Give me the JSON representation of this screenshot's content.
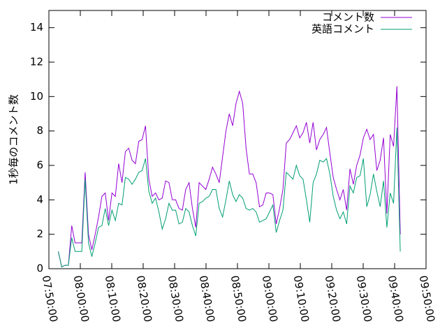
{
  "chart_data": {
    "type": "line",
    "ylabel": "1秒毎のコメント数",
    "x": [
      "07:53:00",
      "07:54:04",
      "07:55:08",
      "07:56:12",
      "07:57:16",
      "07:58:20",
      "07:59:24",
      "08:00:28",
      "08:01:32",
      "08:02:36",
      "08:03:40",
      "08:04:44",
      "08:05:48",
      "08:06:52",
      "08:07:56",
      "08:09:00",
      "08:10:04",
      "08:11:08",
      "08:12:12",
      "08:13:16",
      "08:14:20",
      "08:15:24",
      "08:16:28",
      "08:17:32",
      "08:18:36",
      "08:19:40",
      "08:20:44",
      "08:21:48",
      "08:22:52",
      "08:23:56",
      "08:25:00",
      "08:26:04",
      "08:27:08",
      "08:28:12",
      "08:29:16",
      "08:30:20",
      "08:31:24",
      "08:32:28",
      "08:33:32",
      "08:34:36",
      "08:35:40",
      "08:36:44",
      "08:37:48",
      "08:38:52",
      "08:39:56",
      "08:41:00",
      "08:42:04",
      "08:43:08",
      "08:44:12",
      "08:45:16",
      "08:46:20",
      "08:47:24",
      "08:48:28",
      "08:49:32",
      "08:50:36",
      "08:51:40",
      "08:52:44",
      "08:53:48",
      "08:54:52",
      "08:55:56",
      "08:57:00",
      "08:58:04",
      "08:59:08",
      "09:00:12",
      "09:01:16",
      "09:02:20",
      "09:03:24",
      "09:04:28",
      "09:05:32",
      "09:06:36",
      "09:07:40",
      "09:08:44",
      "09:09:48",
      "09:10:52",
      "09:11:56",
      "09:13:00",
      "09:14:04",
      "09:15:08",
      "09:16:12",
      "09:17:16",
      "09:18:20",
      "09:19:24",
      "09:20:28",
      "09:21:32",
      "09:22:36",
      "09:23:40",
      "09:24:44",
      "09:25:48",
      "09:26:52",
      "09:27:56",
      "09:29:00",
      "09:30:04",
      "09:31:08",
      "09:32:12",
      "09:33:16",
      "09:34:20",
      "09:35:24",
      "09:36:28",
      "09:37:32",
      "09:38:36",
      "09:39:40",
      "09:40:44",
      "09:41:48"
    ],
    "series": [
      {
        "name": "コメント数",
        "color": "#9400d3",
        "values": [
          1.0,
          0.1,
          0.2,
          0.2,
          2.5,
          1.5,
          1.5,
          1.5,
          5.6,
          2.0,
          1.1,
          2.0,
          3.0,
          4.2,
          4.4,
          2.8,
          4.4,
          4.2,
          6.1,
          5.0,
          6.8,
          7.0,
          6.3,
          6.1,
          7.4,
          7.5,
          8.3,
          5.2,
          4.2,
          4.4,
          4.0,
          4.1,
          5.1,
          5.0,
          4.0,
          4.0,
          3.5,
          3.4,
          4.6,
          5.0,
          3.5,
          2.4,
          5.0,
          4.8,
          4.6,
          5.2,
          5.9,
          5.5,
          5.0,
          6.5,
          8.0,
          9.0,
          8.3,
          9.6,
          10.3,
          9.6,
          7.0,
          5.5,
          5.5,
          5.0,
          3.6,
          3.7,
          4.4,
          4.4,
          4.3,
          2.6,
          3.5,
          4.6,
          7.3,
          7.5,
          7.9,
          8.3,
          7.6,
          7.9,
          8.5,
          7.3,
          8.5,
          6.9,
          7.5,
          7.8,
          8.2,
          6.7,
          5.3,
          4.6,
          4.0,
          4.6,
          3.4,
          5.8,
          4.9,
          6.0,
          6.6,
          7.6,
          8.1,
          7.5,
          7.8,
          5.7,
          6.3,
          7.6,
          3.2,
          7.8,
          7.1,
          10.6,
          2.0
        ]
      },
      {
        "name": "英語コメント",
        "color": "#009e73",
        "values": [
          1.0,
          0.1,
          0.2,
          0.2,
          1.8,
          1.0,
          1.0,
          1.0,
          5.2,
          1.5,
          0.7,
          1.5,
          2.4,
          2.5,
          3.5,
          2.5,
          3.4,
          2.8,
          3.8,
          3.7,
          5.3,
          5.2,
          4.9,
          5.2,
          5.6,
          5.7,
          6.4,
          4.5,
          3.8,
          4.1,
          3.3,
          2.3,
          2.9,
          3.8,
          3.4,
          3.4,
          2.6,
          2.7,
          3.5,
          3.3,
          2.5,
          1.9,
          3.8,
          3.9,
          4.1,
          4.2,
          4.6,
          4.6,
          3.5,
          3.0,
          4.0,
          5.1,
          4.3,
          3.9,
          4.3,
          4.1,
          3.5,
          3.4,
          3.5,
          3.3,
          2.7,
          2.8,
          2.9,
          3.3,
          3.7,
          2.1,
          2.8,
          3.4,
          5.6,
          5.4,
          5.2,
          6.0,
          5.4,
          5.2,
          4.0,
          2.7,
          5.0,
          5.5,
          6.3,
          6.2,
          6.4,
          5.5,
          4.2,
          3.4,
          2.9,
          3.3,
          2.6,
          4.8,
          4.4,
          5.3,
          5.4,
          6.4,
          3.6,
          4.3,
          5.5,
          4.5,
          3.6,
          5.1,
          2.4,
          4.4,
          3.8,
          8.2,
          1.0
        ]
      }
    ],
    "xlim": [
      "07:50:00",
      "09:50:00"
    ],
    "xticks": [
      "07:50:00",
      "08:00:00",
      "08:10:00",
      "08:20:00",
      "08:30:00",
      "08:40:00",
      "08:50:00",
      "09:00:00",
      "09:10:00",
      "09:20:00",
      "09:30:00",
      "09:40:00",
      "09:50:00"
    ],
    "ylim": [
      0,
      15
    ],
    "yticks": [
      0,
      2,
      4,
      6,
      8,
      10,
      12,
      14
    ],
    "legend": "top-right"
  }
}
